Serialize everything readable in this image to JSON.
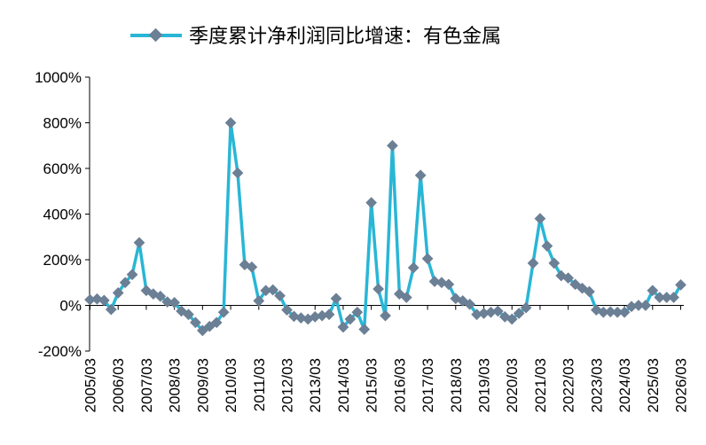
{
  "chart_data": {
    "type": "line",
    "title": "",
    "xlabel": "",
    "ylabel": "",
    "ylim": [
      -200,
      1000
    ],
    "yticks": [
      -200,
      0,
      200,
      400,
      600,
      800,
      1000
    ],
    "ytick_labels": [
      "-200%",
      "0%",
      "200%",
      "400%",
      "600%",
      "800%",
      "1000%"
    ],
    "xtick_labels": [
      "2005/03",
      "2006/03",
      "2007/03",
      "2008/03",
      "2009/03",
      "2010/03",
      "2011/03",
      "2012/03",
      "2013/03",
      "2014/03",
      "2015/03",
      "2016/03",
      "2017/03",
      "2018/03",
      "2019/03",
      "2020/03",
      "2021/03",
      "2022/03",
      "2023/03",
      "2024/03",
      "2025/03",
      "2026/03"
    ],
    "grid": false,
    "legend_position": "top",
    "line_color": "#29B6D6",
    "marker_color": "#6B7F95",
    "series": [
      {
        "name": "季度累计净利润同比增速：有色金属",
        "values": [
          25,
          28,
          22,
          -18,
          55,
          100,
          135,
          275,
          65,
          50,
          40,
          15,
          12,
          -25,
          -40,
          -75,
          -110,
          -92,
          -75,
          -30,
          800,
          580,
          178,
          168,
          20,
          65,
          68,
          42,
          -20,
          -48,
          -55,
          -60,
          -50,
          -45,
          -40,
          30,
          -95,
          -60,
          -30,
          -105,
          450,
          72,
          -45,
          700,
          50,
          35,
          165,
          570,
          205,
          105,
          100,
          92,
          30,
          20,
          5,
          -40,
          -35,
          -30,
          -25,
          -50,
          -60,
          -35,
          -10,
          185,
          380,
          260,
          185,
          130,
          120,
          92,
          75,
          60,
          -20,
          -30,
          -28,
          -30,
          -30,
          -5,
          0,
          0,
          65,
          35,
          35,
          35,
          90
        ]
      }
    ]
  }
}
